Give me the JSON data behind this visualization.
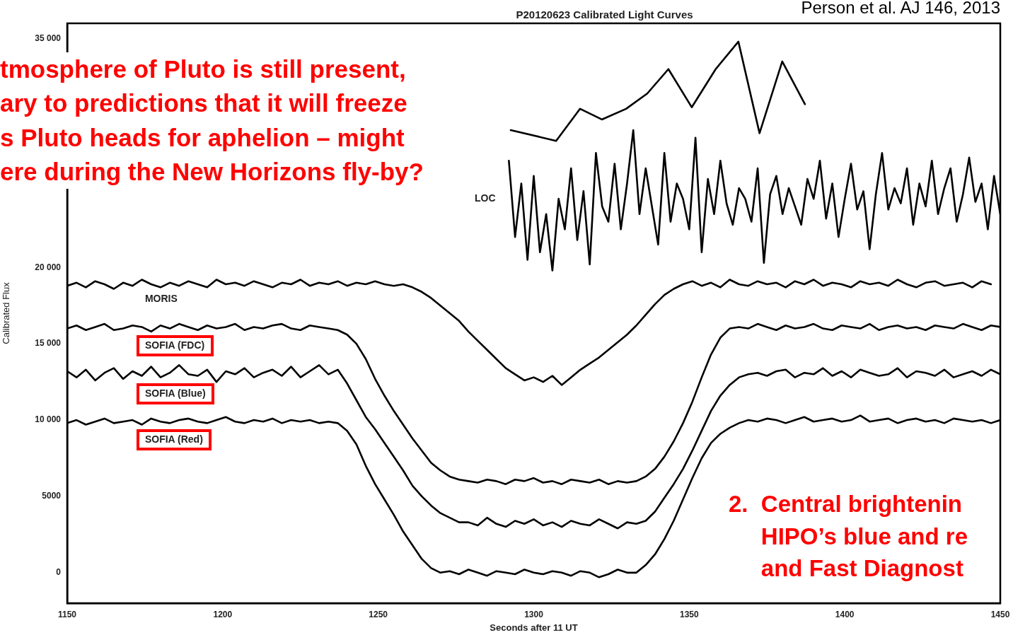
{
  "chart_data": {
    "type": "line",
    "title": "P20120623 Calibrated Light Curves",
    "xlabel": "Seconds after 11 UT",
    "ylabel": "Calibrated Flux",
    "xlim": [
      1150,
      1450
    ],
    "xticks": [
      1150,
      1200,
      1250,
      1300,
      1350,
      1400,
      1450
    ],
    "ylim": [
      -2000,
      36000
    ],
    "yticks": [
      0,
      5000,
      {
        "value": 10000,
        "label": "10 000"
      },
      {
        "value": 15000,
        "label": "15 000"
      },
      {
        "value": 20000,
        "label": "20 000"
      },
      {
        "value": 35000,
        "label": "35 000"
      }
    ],
    "grid": false,
    "legend": false,
    "marker": "none",
    "annotations": [
      "Person et al. AJ 146, 2013",
      "tmosphere of Pluto is still present,\nary to predictions that it will freeze\ns Pluto heads for aphelion – might\nere during the New Horizons fly-by?",
      "2.  Central brightenin\n     HIPO’s blue and re\n     and Fast Diagnost"
    ],
    "x": [
      1150,
      1153,
      1156,
      1159,
      1162,
      1165,
      1168,
      1171,
      1174,
      1177,
      1180,
      1183,
      1186,
      1189,
      1192,
      1195,
      1198,
      1201,
      1204,
      1207,
      1210,
      1213,
      1216,
      1219,
      1222,
      1225,
      1228,
      1231,
      1234,
      1237,
      1240,
      1243,
      1246,
      1249,
      1252,
      1255,
      1258,
      1261,
      1264,
      1267,
      1270,
      1273,
      1276,
      1279,
      1282,
      1285,
      1288,
      1291,
      1294,
      1297,
      1300,
      1303,
      1306,
      1309,
      1312,
      1315,
      1318,
      1321,
      1324,
      1327,
      1330,
      1333,
      1336,
      1339,
      1342,
      1345,
      1348,
      1351,
      1354,
      1357,
      1360,
      1363,
      1366,
      1369,
      1372,
      1375,
      1378,
      1381,
      1384,
      1387,
      1390,
      1393,
      1396,
      1399,
      1402,
      1405,
      1408,
      1411,
      1414,
      1417,
      1420,
      1423,
      1426,
      1429,
      1432,
      1435,
      1438,
      1441,
      1444,
      1447,
      1450
    ],
    "series": [
      {
        "name": "LOC",
        "color": "#000000",
        "x": [
          1292,
          1294,
          1296,
          1298,
          1300,
          1302,
          1304,
          1306,
          1308,
          1310,
          1312,
          1314,
          1316,
          1318,
          1320,
          1322,
          1324,
          1326,
          1328,
          1330,
          1332,
          1334,
          1336,
          1338,
          1340,
          1342,
          1344,
          1346,
          1348,
          1350,
          1352,
          1354,
          1356,
          1358,
          1360,
          1362,
          1364,
          1366,
          1368,
          1370,
          1372,
          1374,
          1376,
          1378,
          1380,
          1382,
          1384,
          1386,
          1388,
          1390,
          1392,
          1394,
          1396,
          1398,
          1400,
          1402,
          1404,
          1406,
          1408,
          1410,
          1412,
          1414,
          1416,
          1418,
          1420,
          1422,
          1424,
          1426,
          1428,
          1430,
          1432,
          1434,
          1436,
          1438,
          1440,
          1442,
          1444,
          1446,
          1448,
          1450
        ],
        "values": [
          27000,
          22000,
          25500,
          20500,
          26000,
          21000,
          23500,
          19800,
          24500,
          22500,
          26500,
          21800,
          25000,
          20200,
          27500,
          24000,
          23000,
          26800,
          22500,
          25500,
          29000,
          23500,
          26500,
          24000,
          21500,
          27500,
          23000,
          25500,
          24500,
          22500,
          28500,
          21000,
          25800,
          23500,
          27000,
          24200,
          22800,
          25200,
          24500,
          23000,
          26500,
          20300,
          24800,
          26000,
          23500,
          25200,
          24000,
          22800,
          25800,
          24500,
          27000,
          23200,
          25500,
          22000,
          24500,
          26800,
          23800,
          25000,
          21200,
          24800,
          27500,
          23800,
          25200,
          24200,
          26500,
          22800,
          25500,
          24000,
          27000,
          23500,
          25200,
          26500,
          23000,
          24800,
          27200,
          24300,
          25500,
          22500,
          26000,
          23500
        ]
      },
      {
        "name": "MORIS",
        "color": "#000000",
        "values": [
          18800,
          19000,
          18700,
          19100,
          18900,
          18600,
          19000,
          18800,
          19200,
          18900,
          18700,
          19000,
          18800,
          19100,
          18900,
          18700,
          19200,
          18900,
          19000,
          18800,
          19100,
          18900,
          18700,
          19000,
          18900,
          19200,
          18800,
          19000,
          18900,
          19100,
          18800,
          19000,
          18900,
          19100,
          18900,
          18800,
          18900,
          18700,
          18400,
          18000,
          17500,
          17000,
          16500,
          15800,
          15200,
          14600,
          14000,
          13400,
          13000,
          12600,
          12800,
          12500,
          12900,
          12300,
          12800,
          13300,
          13700,
          14100,
          14600,
          15100,
          15600,
          16200,
          16900,
          17600,
          18200,
          18600,
          18900,
          19100,
          18800,
          19000,
          18700,
          19200,
          18900,
          18800,
          19100,
          18900,
          19000,
          18700,
          19100,
          18900,
          19200,
          18800,
          19000,
          18900,
          18700,
          19100,
          18900,
          19000,
          18800,
          19200,
          18900,
          18700,
          19000,
          19100,
          18800,
          18900,
          19000,
          18700,
          19100,
          18900,
          null
        ]
      },
      {
        "name": "SOFIA (FDC)",
        "color": "#000000",
        "values": [
          16000,
          16200,
          15900,
          16100,
          16300,
          15900,
          16000,
          16200,
          16100,
          15800,
          16200,
          16000,
          16300,
          16100,
          15900,
          16200,
          16000,
          16100,
          16300,
          15900,
          16100,
          16000,
          16200,
          16300,
          16000,
          15900,
          16200,
          16100,
          16000,
          15900,
          15600,
          15000,
          14000,
          12700,
          11600,
          10600,
          9700,
          8800,
          8000,
          7200,
          6700,
          6300,
          6100,
          6000,
          5900,
          6100,
          6000,
          5800,
          6100,
          6000,
          6200,
          5900,
          6000,
          5800,
          6100,
          6000,
          5900,
          6100,
          5800,
          6000,
          5900,
          6000,
          6300,
          6800,
          7600,
          8600,
          9800,
          11200,
          12800,
          14300,
          15400,
          16000,
          16100,
          16000,
          16300,
          16100,
          15900,
          16200,
          16000,
          16100,
          16300,
          16000,
          15900,
          16200,
          16100,
          16000,
          16300,
          15900,
          16100,
          16200,
          16000,
          16100,
          15900,
          16200,
          16100,
          16000,
          16300,
          16100,
          15900,
          16200,
          16100
        ]
      },
      {
        "name": "SOFIA (Blue)",
        "color": "#000000",
        "values": [
          13200,
          12800,
          13300,
          12600,
          13100,
          13400,
          12700,
          13200,
          12900,
          13500,
          12800,
          13100,
          13600,
          13000,
          12900,
          13300,
          12500,
          13200,
          13000,
          13400,
          12800,
          13100,
          13300,
          12900,
          13500,
          12800,
          13200,
          13600,
          13000,
          13300,
          12400,
          11300,
          10200,
          9400,
          8500,
          7600,
          6700,
          5700,
          5000,
          4400,
          3900,
          3600,
          3300,
          3300,
          3100,
          3600,
          3200,
          3000,
          3400,
          3200,
          3500,
          3100,
          3300,
          3000,
          3400,
          3200,
          3100,
          3500,
          3200,
          2900,
          3300,
          3200,
          3400,
          4000,
          4900,
          5800,
          6800,
          8000,
          9300,
          10600,
          11600,
          12300,
          12800,
          13000,
          13100,
          12900,
          13200,
          13300,
          12800,
          13100,
          13000,
          13400,
          12900,
          13200,
          12800,
          13300,
          13100,
          12900,
          13000,
          13400,
          12800,
          13200,
          13100,
          12900,
          13300,
          12800,
          13000,
          13200,
          12900,
          13300,
          13000
        ]
      },
      {
        "name": "SOFIA (Red)",
        "color": "#000000",
        "values": [
          9800,
          10000,
          9700,
          9900,
          10100,
          9800,
          9900,
          10000,
          9700,
          10100,
          9900,
          9800,
          10000,
          10100,
          9900,
          9800,
          10000,
          10200,
          9900,
          9800,
          10000,
          9900,
          10100,
          9800,
          10000,
          9900,
          10000,
          9800,
          9900,
          9800,
          9300,
          8400,
          7000,
          5800,
          4800,
          3800,
          2700,
          1800,
          900,
          300,
          0,
          100,
          -100,
          200,
          0,
          -200,
          100,
          0,
          -100,
          200,
          0,
          -100,
          100,
          0,
          -200,
          100,
          0,
          -300,
          -100,
          200,
          0,
          0,
          500,
          1200,
          2200,
          3400,
          4800,
          6200,
          7500,
          8500,
          9100,
          9500,
          9800,
          10000,
          9900,
          10100,
          10000,
          9800,
          10000,
          10200,
          9900,
          10000,
          10100,
          9900,
          10000,
          10300,
          9900,
          10000,
          10100,
          9800,
          10000,
          10100,
          9900,
          10000,
          9800,
          10100,
          10000,
          9900,
          10000,
          9800,
          10000
        ]
      },
      {
        "color": "#000000",
        "x": [
          1292.6,
          1307.2,
          1314.9,
          1321.9,
          1329.7,
          1336.5,
          1343.3,
          1350.8,
          1358.5,
          1365.8,
          1372.6,
          1379.9,
          1387.2
        ],
        "values": [
          29000,
          28300,
          30400,
          29700,
          30400,
          31400,
          33000,
          30500,
          33000,
          34800,
          28800,
          33500,
          30700
        ]
      }
    ]
  }
}
